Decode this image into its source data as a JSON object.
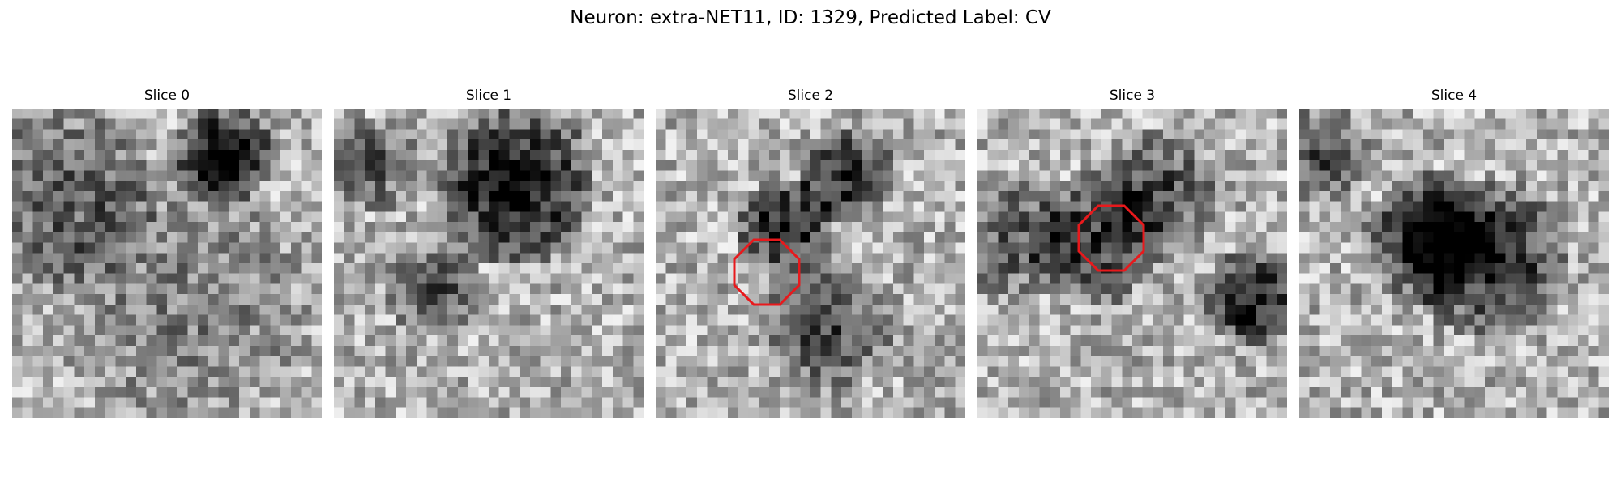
{
  "figure": {
    "title": "Neuron: extra-NET11, ID: 1329, Predicted Label: CV"
  },
  "slices": [
    {
      "title": "Slice 0"
    },
    {
      "title": "Slice 1"
    },
    {
      "title": "Slice 2"
    },
    {
      "title": "Slice 3"
    },
    {
      "title": "Slice 4"
    }
  ],
  "colors": {
    "outline": "#e8191c",
    "colormap": "gray"
  },
  "marker": {
    "shape": "octagon",
    "slice_indices": [
      2,
      3
    ]
  }
}
